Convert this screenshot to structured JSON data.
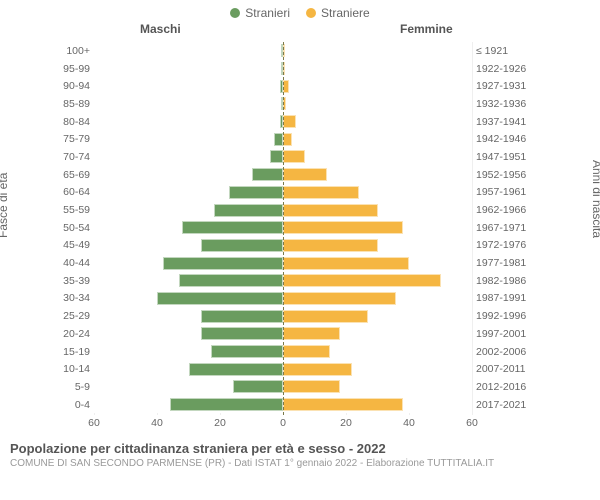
{
  "chart": {
    "type": "population-pyramid",
    "legend": {
      "male_label": "Stranieri",
      "female_label": "Straniere",
      "male_color": "#6a9c5f",
      "female_color": "#f5b642"
    },
    "headers": {
      "left": "Maschi",
      "right": "Femmine"
    },
    "ylabel_left": "Fasce di età",
    "ylabel_right": "Anni di nascita",
    "xmax": 60,
    "xticks": [
      60,
      40,
      20,
      0,
      20,
      40,
      60
    ],
    "background_color": "#ffffff",
    "grid_color": "#efefef",
    "center_line_color": "#7a7a4a",
    "axis_fontsize": 10.5,
    "label_fontsize": 12,
    "rows": [
      {
        "age": "100+",
        "birth": "≤ 1921",
        "m": 0,
        "f": 0
      },
      {
        "age": "95-99",
        "birth": "1922-1926",
        "m": 0,
        "f": 0
      },
      {
        "age": "90-94",
        "birth": "1927-1931",
        "m": 1,
        "f": 2
      },
      {
        "age": "85-89",
        "birth": "1932-1936",
        "m": 0,
        "f": 1
      },
      {
        "age": "80-84",
        "birth": "1937-1941",
        "m": 1,
        "f": 4
      },
      {
        "age": "75-79",
        "birth": "1942-1946",
        "m": 3,
        "f": 3
      },
      {
        "age": "70-74",
        "birth": "1947-1951",
        "m": 4,
        "f": 7
      },
      {
        "age": "65-69",
        "birth": "1952-1956",
        "m": 10,
        "f": 14
      },
      {
        "age": "60-64",
        "birth": "1957-1961",
        "m": 17,
        "f": 24
      },
      {
        "age": "55-59",
        "birth": "1962-1966",
        "m": 22,
        "f": 30
      },
      {
        "age": "50-54",
        "birth": "1967-1971",
        "m": 32,
        "f": 38
      },
      {
        "age": "45-49",
        "birth": "1972-1976",
        "m": 26,
        "f": 30
      },
      {
        "age": "40-44",
        "birth": "1977-1981",
        "m": 38,
        "f": 40
      },
      {
        "age": "35-39",
        "birth": "1982-1986",
        "m": 33,
        "f": 50
      },
      {
        "age": "30-34",
        "birth": "1987-1991",
        "m": 40,
        "f": 36
      },
      {
        "age": "25-29",
        "birth": "1992-1996",
        "m": 26,
        "f": 27
      },
      {
        "age": "20-24",
        "birth": "1997-2001",
        "m": 26,
        "f": 18
      },
      {
        "age": "15-19",
        "birth": "2002-2006",
        "m": 23,
        "f": 15
      },
      {
        "age": "10-14",
        "birth": "2007-2011",
        "m": 30,
        "f": 22
      },
      {
        "age": "5-9",
        "birth": "2012-2016",
        "m": 16,
        "f": 18
      },
      {
        "age": "0-4",
        "birth": "2017-2021",
        "m": 36,
        "f": 38
      }
    ]
  },
  "footer": {
    "title": "Popolazione per cittadinanza straniera per età e sesso - 2022",
    "subtitle": "COMUNE DI SAN SECONDO PARMENSE (PR) - Dati ISTAT 1° gennaio 2022 - Elaborazione TUTTITALIA.IT"
  }
}
